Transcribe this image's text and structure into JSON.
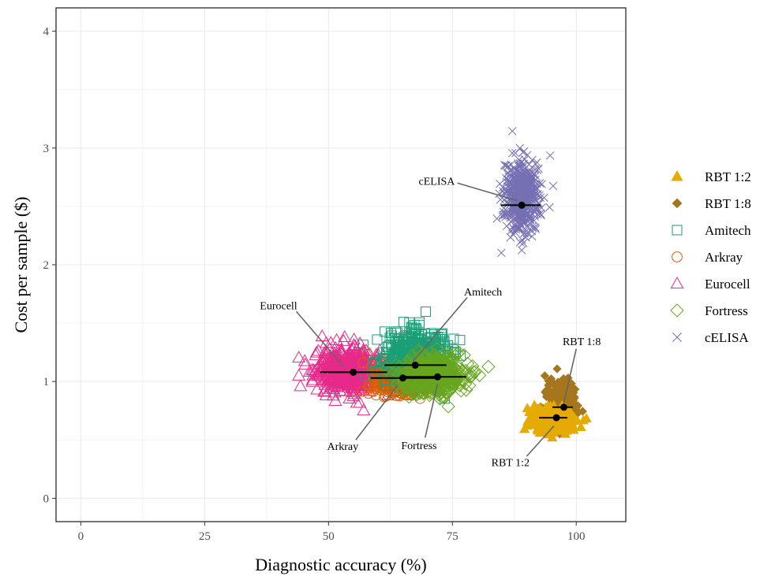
{
  "chart_data": {
    "type": "scatter",
    "xlabel": "Diagnostic accuracy (%)",
    "ylabel": "Cost per sample ($)",
    "xlim": [
      -5,
      110
    ],
    "ylim": [
      -0.2,
      4.2
    ],
    "x_ticks": [
      0,
      25,
      50,
      75,
      100
    ],
    "y_ticks": [
      0,
      1,
      2,
      3,
      4
    ],
    "grid": true,
    "legend_position": "right",
    "series": [
      {
        "name": "RBT 1:2",
        "marker": "filled-triangle",
        "color": "#E6AB02",
        "cloud": {
          "x_center": 95,
          "x_spread": 3.5,
          "y_center": 0.68,
          "y_spread": 0.09
        },
        "mean": {
          "x": 96,
          "y": 0.69
        },
        "xerr": [
          92.5,
          98.2
        ]
      },
      {
        "name": "RBT 1:8",
        "marker": "filled-diamond",
        "color": "#A6761D",
        "cloud": {
          "x_center": 97,
          "x_spread": 2.5,
          "y_center": 0.83,
          "y_spread": 0.15
        },
        "mean": {
          "x": 97.5,
          "y": 0.78
        },
        "xerr": [
          95.2,
          99.3
        ]
      },
      {
        "name": "Amitech",
        "marker": "open-square",
        "color": "#1B9E77",
        "cloud": {
          "x_center": 67.5,
          "x_spread": 5.5,
          "y_center": 1.22,
          "y_spread": 0.2
        },
        "mean": {
          "x": 67.5,
          "y": 1.14
        },
        "xerr": [
          61.3,
          73.8
        ]
      },
      {
        "name": "Arkray",
        "marker": "open-circle",
        "color": "#D95F02",
        "cloud": {
          "x_center": 65,
          "x_spread": 5.5,
          "y_center": 1.02,
          "y_spread": 0.12
        },
        "mean": {
          "x": 65,
          "y": 1.03
        },
        "xerr": [
          58.5,
          71.5
        ]
      },
      {
        "name": "Eurocell",
        "marker": "open-triangle",
        "color": "#E7298A",
        "cloud": {
          "x_center": 54,
          "x_spread": 6,
          "y_center": 1.09,
          "y_spread": 0.17
        },
        "mean": {
          "x": 55,
          "y": 1.08
        },
        "xerr": [
          48.3,
          61.8
        ]
      },
      {
        "name": "Fortress",
        "marker": "open-diamond",
        "color": "#66A61E",
        "cloud": {
          "x_center": 71,
          "x_spread": 6,
          "y_center": 1.07,
          "y_spread": 0.15
        },
        "mean": {
          "x": 72,
          "y": 1.04
        },
        "xerr": [
          65,
          77.8
        ]
      },
      {
        "name": "cELISA",
        "marker": "x",
        "color": "#7570B3",
        "cloud": {
          "x_center": 89,
          "x_spread": 3.3,
          "y_center": 2.6,
          "y_spread": 0.3
        },
        "mean": {
          "x": 89,
          "y": 2.51
        },
        "xerr": [
          84.8,
          92.8
        ]
      }
    ],
    "annotations": [
      {
        "text": "cELISA",
        "x": 76,
        "y": 2.7,
        "target_x": 88,
        "target_y": 2.55
      },
      {
        "text": "Eurocell",
        "x": 43.5,
        "y": 1.6,
        "target_x": 53,
        "target_y": 1.13
      },
      {
        "text": "Amitech",
        "x": 78,
        "y": 1.72,
        "target_x": 67,
        "target_y": 1.17
      },
      {
        "text": "Arkray",
        "x": 55.5,
        "y": 0.5,
        "target_x": 64,
        "target_y": 0.97
      },
      {
        "text": "Fortress",
        "x": 69.5,
        "y": 0.52,
        "target_x": 72,
        "target_y": 0.98
      },
      {
        "text": "RBT 1:8",
        "x": 100,
        "y": 1.28,
        "target_x": 97.5,
        "target_y": 0.82
      },
      {
        "text": "RBT 1:2",
        "x": 90,
        "y": 0.36,
        "target_x": 95.5,
        "target_y": 0.62
      }
    ]
  }
}
